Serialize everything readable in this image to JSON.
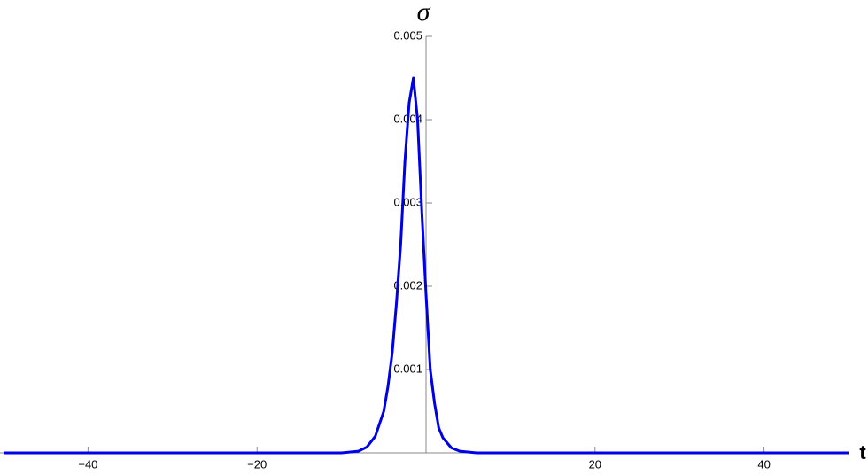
{
  "chart_data": {
    "type": "line",
    "x_label": "t",
    "y_label": "σ",
    "x": [
      -50,
      -20,
      -10,
      -8,
      -7,
      -6,
      -5,
      -4.5,
      -4,
      -3.5,
      -3,
      -2.5,
      -2,
      -1.5,
      -1,
      -0.5,
      0,
      0.5,
      1,
      1.5,
      2,
      3,
      4,
      6,
      20,
      50
    ],
    "series": [
      {
        "color": "#0000e6",
        "values": [
          0,
          0,
          0,
          2e-05,
          7e-05,
          0.0002,
          0.0005,
          0.0008,
          0.0012,
          0.0018,
          0.0025,
          0.0035,
          0.0042,
          0.0045,
          0.004,
          0.0029,
          0.0019,
          0.001,
          0.0006,
          0.0003,
          0.00018,
          6e-05,
          2e-05,
          0,
          0,
          0
        ]
      }
    ],
    "xlim": [
      -50,
      50
    ],
    "ylim": [
      0,
      0.005
    ],
    "xticks": [
      {
        "value": -40,
        "label": "−40"
      },
      {
        "value": -20,
        "label": "−20"
      },
      20,
      40
    ],
    "yticks": [
      0.001,
      0.002,
      0.003,
      0.004,
      0.005
    ]
  }
}
